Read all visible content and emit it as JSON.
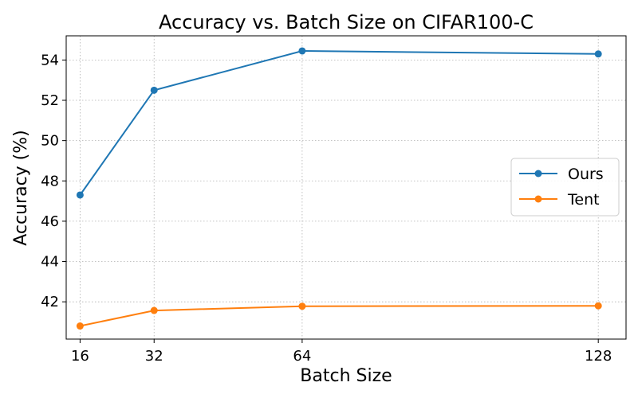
{
  "chart_data": {
    "type": "line",
    "title": "Accuracy vs. Batch Size on CIFAR100-C",
    "xlabel": "Batch Size",
    "ylabel": "Accuracy (%)",
    "x": [
      16,
      32,
      64,
      128
    ],
    "xticks": [
      "16",
      "32",
      "64",
      "128"
    ],
    "xlim": [
      13,
      134
    ],
    "yticks": [
      42,
      44,
      46,
      48,
      50,
      52,
      54
    ],
    "ylim": [
      40.15,
      55.2
    ],
    "grid": true,
    "legend": "center-right",
    "series": [
      {
        "name": "Ours",
        "color": "#1f77b4",
        "values": [
          47.3,
          52.5,
          54.45,
          54.3
        ]
      },
      {
        "name": "Tent",
        "color": "#ff7f0e",
        "values": [
          40.8,
          41.57,
          41.78,
          41.8
        ]
      }
    ]
  }
}
